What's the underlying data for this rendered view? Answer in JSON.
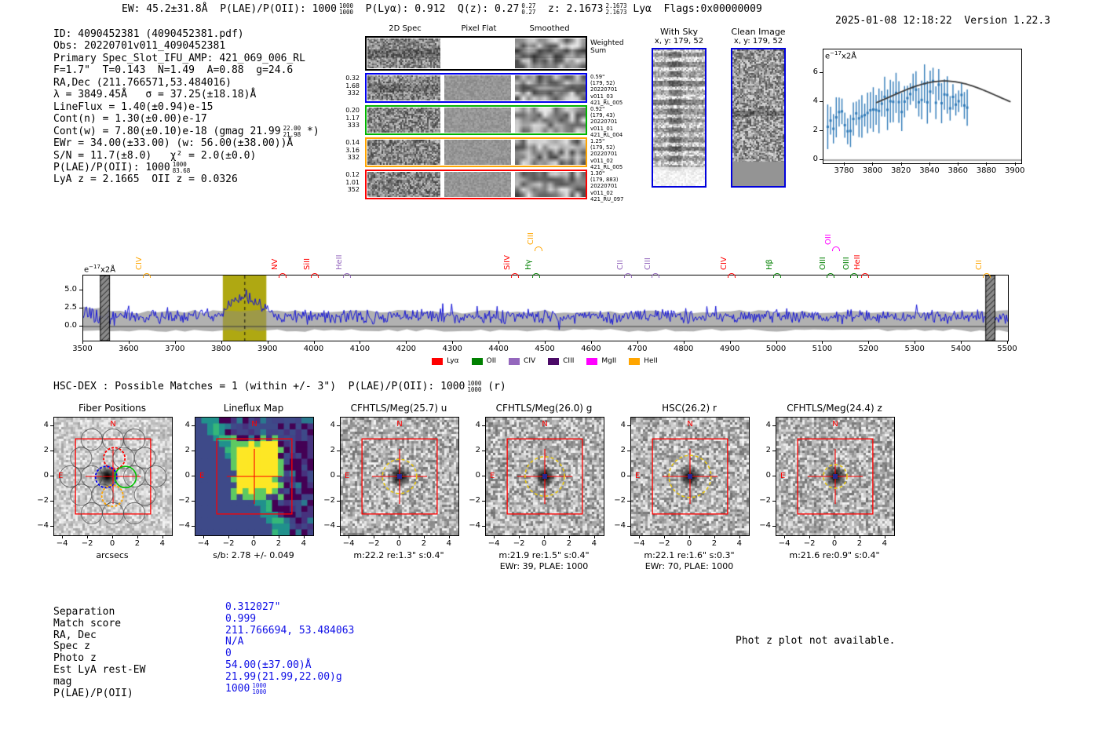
{
  "header": {
    "segments": [
      {
        "t": "EW: 45.2±31.8Å  P(LAE)/P(OII): 1000"
      },
      {
        "frac": [
          "1000",
          "1000"
        ]
      },
      {
        "t": "  P(Lyα): 0.912  Q(z): 0.27"
      },
      {
        "frac": [
          "0.27",
          "0.27"
        ]
      },
      {
        "t": "  z: 2.1673"
      },
      {
        "frac": [
          "2.1673",
          "2.1673"
        ]
      },
      {
        "t": " Lyα  Flags:0x00000009"
      }
    ],
    "datetime": "2025-01-08 12:18:22",
    "version": "Version 1.22.3"
  },
  "info_lines": [
    [
      {
        "t": "ID: 4090452381 (4090452381.pdf)"
      }
    ],
    [
      {
        "t": "Obs: 20220701v011_4090452381"
      }
    ],
    [
      {
        "t": "Primary Spec_Slot_IFU_AMP: 421_069_006_RL"
      }
    ],
    [
      {
        "t": "F=1.7\"  T=0.143  N=1.49  A=0.88  g=24.6"
      }
    ],
    [
      {
        "t": "RA,Dec (211.766571,53.484016)"
      }
    ],
    [
      {
        "t": "λ = 3849.45Å   σ = 37.25(±18.18)Å"
      }
    ],
    [
      {
        "t": "LineFlux = 1.40(±0.94)e-15"
      }
    ],
    [
      {
        "t": "Cont(n) = 1.30(±0.00)e-17"
      }
    ],
    [
      {
        "t": "Cont(w) = 7.80(±0.10)e-18 (gmag 21.99"
      },
      {
        "frac": [
          "22.00",
          "21.98"
        ]
      },
      {
        "t": " *)"
      }
    ],
    [
      {
        "t": "EWr = 34.00(±33.00) (w: 56.00(±38.00))Å"
      }
    ],
    [
      {
        "t": "S/N = 11.7(±8.0)   χ² = 2.0(±0.0)"
      }
    ],
    [
      {
        "t": "P(LAE)/P(OII): 1000"
      },
      {
        "frac": [
          "1000",
          "83.68"
        ]
      }
    ],
    [
      {
        "t": "LyA z = 2.1665  OII z = 0.0326"
      }
    ]
  ],
  "spec2d": {
    "col_headers": [
      "2D Spec",
      "Pixel Flat",
      "Smoothed"
    ],
    "weighted_label": [
      "Weighted",
      "Sum"
    ],
    "rows": [
      {
        "color": "#0000ee",
        "left": [
          "0.32",
          "1.68",
          "332"
        ],
        "right": [
          "0.59\"",
          "(179, 52)",
          "20220701",
          "v011_03",
          "421_RL_005"
        ]
      },
      {
        "color": "#00b400",
        "left": [
          "0.20",
          "1.17",
          "333"
        ],
        "right": [
          "0.92\"",
          "(179, 43)",
          "20220701",
          "v011_01",
          "421_RL_004"
        ]
      },
      {
        "color": "#ffa500",
        "left": [
          "0.14",
          "3.16",
          "332"
        ],
        "right": [
          "1.25\"",
          "(179, 52)",
          "20220701",
          "v011_02",
          "421_RL_005"
        ]
      },
      {
        "color": "#ff0000",
        "left": [
          "0.12",
          "1.01",
          "352"
        ],
        "right": [
          "1.30\"",
          "(179, 883)",
          "20220701",
          "v011_02",
          "421_RU_097"
        ]
      }
    ]
  },
  "withsky": {
    "title": "With Sky",
    "subtitle": "x, y: 179, 52"
  },
  "clean": {
    "title": "Clean Image",
    "subtitle": "x, y: 179, 52"
  },
  "flux_units": {
    "base": "e",
    "sup": "−17",
    "rest": "x2Å"
  },
  "hsc_line": [
    {
      "t": "HSC-DEX : Possible Matches = 1 (within +/- 3\")  P(LAE)/P(OII): 1000"
    },
    {
      "frac": [
        "1000",
        "1000"
      ]
    },
    {
      "t": " (r)"
    }
  ],
  "cutouts": {
    "x_ticks": [
      "−4",
      "−2",
      "0",
      "2",
      "4"
    ],
    "y_ticks": [
      "4",
      "2",
      "0",
      "−2",
      "−4"
    ],
    "compass_n": "N",
    "compass_e": "E",
    "panels": [
      {
        "title": "Fiber Positions",
        "kind": "fiber",
        "caption1": "arcsecs",
        "caption2": ""
      },
      {
        "title": "Lineflux Map",
        "kind": "lineflux",
        "caption1": "s/b: 2.78 +/- 0.049",
        "caption2": ""
      },
      {
        "title": "CFHTLS/Meg(25.7) u",
        "kind": "image",
        "circle_r": 1.3,
        "caption1": "m:22.2  re:1.3\"  s:0.4\"",
        "caption2": ""
      },
      {
        "title": "CFHTLS/Meg(26.0) g",
        "kind": "image",
        "circle_r": 1.5,
        "caption1": "m:21.9  re:1.5\"  s:0.4\"",
        "caption2": "EWr: 39, PLAE: 1000"
      },
      {
        "title": "HSC(26.2) r",
        "kind": "image",
        "circle_r": 1.6,
        "caption1": "m:22.1  re:1.6\"  s:0.3\"",
        "caption2": "EWr: 70, PLAE: 1000"
      },
      {
        "title": "CFHTLS/Meg(24.4) z",
        "kind": "image",
        "circle_r": 0.9,
        "caption1": "m:21.6  re:0.9\"  s:0.4\"",
        "caption2": ""
      }
    ]
  },
  "match": {
    "rows": [
      {
        "label": "Separation",
        "value": [
          {
            "t": "0.312027\""
          }
        ]
      },
      {
        "label": "Match score",
        "value": [
          {
            "t": "0.999"
          }
        ]
      },
      {
        "label": "RA, Dec",
        "value": [
          {
            "t": "211.766694, 53.484063"
          }
        ]
      },
      {
        "label": "Spec z",
        "value": [
          {
            "t": "N/A"
          }
        ]
      },
      {
        "label": "Photo z",
        "value": [
          {
            "t": "0"
          }
        ]
      },
      {
        "label": "Est LyA rest-EW",
        "value": [
          {
            "t": "54.00(±37.00)Å"
          }
        ]
      },
      {
        "label": "mag",
        "value": [
          {
            "t": "21.99(21.99,22.00)g"
          }
        ]
      },
      {
        "label": "P(LAE)/P(OII)",
        "value": [
          {
            "t": "1000"
          },
          {
            "frac": [
              "1000",
              "1000"
            ]
          }
        ]
      }
    ],
    "note": "Phot z plot not available."
  },
  "chart_data": [
    {
      "id": "line_fit_zoom",
      "type": "scatter",
      "title": "",
      "annotation": "e−17x2Å",
      "xlim": [
        3765,
        3904
      ],
      "ylim": [
        -0.35,
        7.7
      ],
      "x_ticks": [
        3780,
        3800,
        3820,
        3840,
        3860,
        3880,
        3900
      ],
      "y_ticks": [
        0,
        2,
        4,
        6
      ],
      "zero_line": true,
      "series": [
        {
          "name": "observed spectrum",
          "style": "errorbar",
          "color": "#2f7ab8",
          "procedural": true,
          "x_range": [
            3768,
            3866
          ],
          "n_points": 50,
          "continuum": 2.3,
          "peak": {
            "center": 3843,
            "amp": 2.2,
            "sigma": 34
          },
          "noise_amp": 1.15,
          "err_range": [
            0.7,
            1.6
          ]
        },
        {
          "name": "line fit",
          "style": "line",
          "color": "#3a3a3a",
          "model": "gaussian",
          "baseline": 2.8,
          "amplitude": 2.65,
          "center": 3850,
          "sigma": 37.25,
          "x_range": [
            3802,
            3897
          ]
        }
      ]
    },
    {
      "id": "full_spectrum",
      "type": "line",
      "xlim": [
        3500,
        5500
      ],
      "ylim": [
        -1.96,
        7.05
      ],
      "x_ticks": [
        3500,
        3600,
        3700,
        3800,
        3900,
        4000,
        4100,
        4200,
        4300,
        4400,
        4500,
        4600,
        4700,
        4800,
        4900,
        5000,
        5100,
        5200,
        5300,
        5400,
        5500
      ],
      "y_ticks": [
        "5.0",
        "2.5",
        "0.0"
      ],
      "y_tick_vals": [
        5.0,
        2.5,
        0.0
      ],
      "highlight_band": [
        3802,
        3896
      ],
      "dashed_line": 3849.45,
      "masked_bands": [
        [
          3537,
          3557
        ],
        [
          5452,
          5472
        ]
      ],
      "series": [
        {
          "name": "flux",
          "color": "#1212d6",
          "procedural": true,
          "continuum": 1.35,
          "noise_amp": 1.15,
          "peak": {
            "center": 3849,
            "amp": 2.7,
            "sigma": 31
          }
        },
        {
          "name": "error envelope",
          "color": "#9e9e9e",
          "top": 2.05,
          "bottom": -0.55
        }
      ],
      "legend": [
        {
          "label": "Lyα",
          "color": "#ff0000"
        },
        {
          "label": "OII",
          "color": "#008000"
        },
        {
          "label": "CIV",
          "color": "#9467bd"
        },
        {
          "label": "CIII",
          "color": "#4b0a67"
        },
        {
          "label": "MgII",
          "color": "#ff00ff"
        },
        {
          "label": "HeII",
          "color": "#ffa500"
        }
      ],
      "emission_labels": [
        {
          "label": "CIV",
          "color": "#ffa500",
          "wl": 3637,
          "row": 0
        },
        {
          "label": "NV",
          "color": "#ff0000",
          "wl": 3932,
          "row": 0
        },
        {
          "label": "SiII",
          "color": "#ff0000",
          "wl": 4000,
          "row": 0
        },
        {
          "label": "HeII",
          "color": "#9467bd",
          "wl": 4071,
          "row": 0
        },
        {
          "label": "SiIV",
          "color": "#ff0000",
          "wl": 4433,
          "row": 0
        },
        {
          "label": "Hγ",
          "color": "#008000",
          "wl": 4479,
          "row": 0
        },
        {
          "label": "CIII",
          "color": "#ffa500",
          "wl": 4484,
          "row": 1
        },
        {
          "label": "CII",
          "color": "#9467bd",
          "wl": 4679,
          "row": 0
        },
        {
          "label": "CIII",
          "color": "#9467bd",
          "wl": 4738,
          "row": 0
        },
        {
          "label": "CIV",
          "color": "#ff0000",
          "wl": 4903,
          "row": 0
        },
        {
          "label": "Hβ",
          "color": "#008000",
          "wl": 5001,
          "row": 0
        },
        {
          "label": "OIII",
          "color": "#008000",
          "wl": 5117,
          "row": 0
        },
        {
          "label": "OII",
          "color": "#ff00ff",
          "wl": 5129,
          "row": 1
        },
        {
          "label": "OIII",
          "color": "#008000",
          "wl": 5168,
          "row": 0
        },
        {
          "label": "HeII",
          "color": "#ff0000",
          "wl": 5191,
          "row": 0
        },
        {
          "label": "CII",
          "color": "#ffa500",
          "wl": 5455,
          "row": 0
        }
      ]
    }
  ]
}
